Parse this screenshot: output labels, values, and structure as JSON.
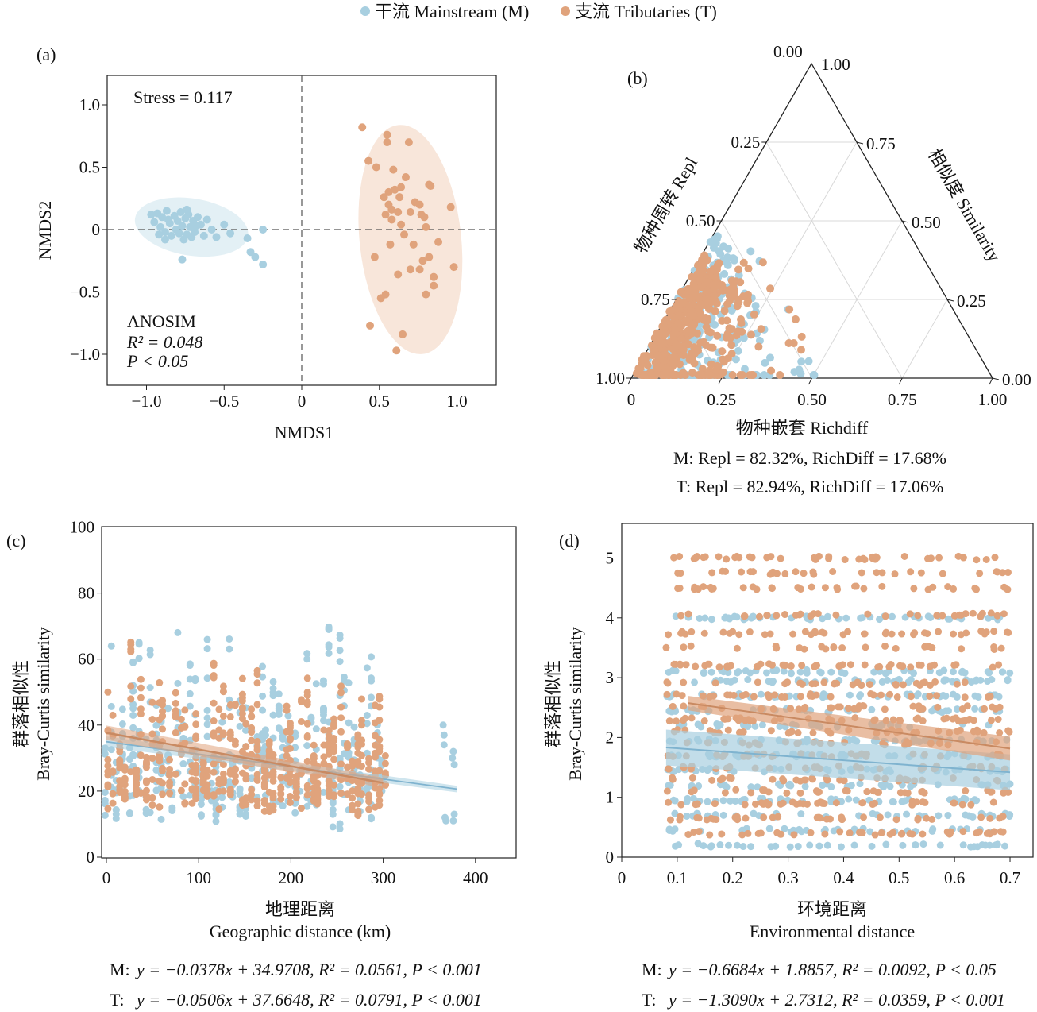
{
  "legend": {
    "mainstream": "干流 Mainstream (M)",
    "tributaries": "支流 Tributaries (T)"
  },
  "colors": {
    "mainstream": "#a8cfe0",
    "tributaries": "#e0a37c",
    "ellipse_m": "#e3f0f5",
    "ellipse_t": "#f8e6da"
  },
  "panel_a": {
    "label": "(a)",
    "xlabel": "NMDS1",
    "ylabel": "NMDS2",
    "stress": "Stress = 0.117",
    "anosim": "ANOSIM",
    "r2": "R² = 0.048",
    "p": "P < 0.05",
    "xticks": [
      "−1.0",
      "−0.5",
      "0",
      "0.5",
      "1.0"
    ],
    "yticks": [
      "1.0",
      "0.5",
      "0",
      "−0.5",
      "−1.0"
    ]
  },
  "panel_b": {
    "label": "(b)",
    "left_axis": "物种周转 Repl",
    "right_axis": "相似度 Similarity",
    "bottom_axis": "物种嵌套 Richdiff",
    "left_ticks": [
      "0.25",
      "0.50",
      "0.75",
      "1.00"
    ],
    "top_left": "0.00",
    "top_right": "1.00",
    "right_ticks": [
      "0.75",
      "0.50",
      "0.25",
      "0.00"
    ],
    "bottom_ticks": [
      "0",
      "0.25",
      "0.50",
      "0.75",
      "1.00"
    ],
    "stat_m": "M: Repl = 82.32%, RichDiff = 17.68%",
    "stat_t": "T: Repl = 82.94%, RichDiff = 17.06%"
  },
  "panel_c": {
    "label": "(c)",
    "ylabel_cn": "群落相似性",
    "ylabel_en": "Bray-Curtis similarity",
    "xlabel_cn": "地理距离",
    "xlabel_en": "Geographic distance (km)",
    "xticks": [
      "0",
      "100",
      "200",
      "300",
      "400"
    ],
    "yticks": [
      "0",
      "20",
      "40",
      "60",
      "80",
      "100"
    ],
    "eq_m_prefix": "M: ",
    "eq_m": "y = −0.0378x + 34.9708, R² = 0.0561, P < 0.001",
    "eq_t_prefix": "T: ",
    "eq_t": "y = −0.0506x + 37.6648, R² = 0.0791, P < 0.001"
  },
  "panel_d": {
    "label": "(d)",
    "ylabel_cn": "群落相似性",
    "ylabel_en": "Bray-Curtis similarity",
    "xlabel_cn": "环境距离",
    "xlabel_en": "Environmental distance",
    "xticks": [
      "0",
      "0.1",
      "0.2",
      "0.3",
      "0.4",
      "0.5",
      "0.6",
      "0.7"
    ],
    "yticks": [
      "0",
      "1",
      "2",
      "3",
      "4",
      "5"
    ],
    "eq_m_prefix": "M: ",
    "eq_m": "y = −0.6684x + 1.8857, R² = 0.0092, P < 0.05",
    "eq_t_prefix": "T: ",
    "eq_t": "y = −1.3090x + 2.7312, R² = 0.0359, P < 0.001"
  },
  "chart_data": [
    {
      "type": "scatter",
      "panel": "a",
      "xlabel": "NMDS1",
      "ylabel": "NMDS2",
      "xlim": [
        -1.25,
        1.25
      ],
      "ylim": [
        -1.25,
        1.25
      ],
      "series": [
        {
          "name": "干流 Mainstream (M)",
          "points": [
            [
              -0.97,
              0.12
            ],
            [
              -0.95,
              0.06
            ],
            [
              -0.93,
              0.13
            ],
            [
              -0.91,
              0.02
            ],
            [
              -0.9,
              0.1
            ],
            [
              -0.88,
              -0.02
            ],
            [
              -0.87,
              0.15
            ],
            [
              -0.85,
              0.05
            ],
            [
              -0.84,
              -0.05
            ],
            [
              -0.82,
              0.11
            ],
            [
              -0.81,
              0.0
            ],
            [
              -0.8,
              0.07
            ],
            [
              -0.79,
              -0.03
            ],
            [
              -0.78,
              0.14
            ],
            [
              -0.77,
              0.03
            ],
            [
              -0.76,
              -0.08
            ],
            [
              -0.75,
              0.09
            ],
            [
              -0.74,
              -0.04
            ],
            [
              -0.73,
              0.12
            ],
            [
              -0.72,
              0.02
            ],
            [
              -0.71,
              -0.06
            ],
            [
              -0.7,
              0.07
            ],
            [
              -0.69,
              -0.02
            ],
            [
              -0.67,
              0.1
            ],
            [
              -0.65,
              0.04
            ],
            [
              -0.63,
              -0.05
            ],
            [
              -0.61,
              0.08
            ],
            [
              -0.58,
              0.0
            ],
            [
              -0.55,
              -0.06
            ],
            [
              -0.5,
              0.04
            ],
            [
              -0.46,
              -0.03
            ],
            [
              -0.77,
              -0.24
            ],
            [
              -0.88,
              -0.08
            ],
            [
              -0.92,
              -0.04
            ],
            [
              -0.35,
              -0.07
            ],
            [
              -0.33,
              -0.18
            ],
            [
              -0.3,
              -0.22
            ],
            [
              -0.25,
              -0.28
            ],
            [
              -0.25,
              0.0
            ],
            [
              -0.86,
              0.08
            ],
            [
              -0.68,
              0.03
            ],
            [
              -0.74,
              0.16
            ]
          ]
        },
        {
          "name": "支流 Tributaries (T)",
          "points": [
            [
              0.39,
              0.82
            ],
            [
              0.55,
              0.76
            ],
            [
              0.55,
              0.7
            ],
            [
              0.69,
              0.7
            ],
            [
              0.43,
              0.55
            ],
            [
              0.48,
              0.5
            ],
            [
              0.59,
              0.48
            ],
            [
              0.67,
              0.42
            ],
            [
              0.82,
              0.36
            ],
            [
              0.83,
              0.35
            ],
            [
              0.56,
              0.3
            ],
            [
              0.6,
              0.32
            ],
            [
              0.64,
              0.34
            ],
            [
              0.53,
              0.26
            ],
            [
              0.63,
              0.26
            ],
            [
              0.56,
              0.2
            ],
            [
              0.73,
              0.22
            ],
            [
              0.76,
              0.2
            ],
            [
              0.58,
              0.16
            ],
            [
              0.62,
              0.14
            ],
            [
              0.54,
              0.12
            ],
            [
              0.7,
              0.14
            ],
            [
              0.77,
              0.12
            ],
            [
              0.79,
              0.1
            ],
            [
              0.96,
              0.18
            ],
            [
              0.58,
              0.08
            ],
            [
              0.64,
              0.04
            ],
            [
              0.8,
              0.02
            ],
            [
              0.66,
              -0.04
            ],
            [
              0.57,
              -0.12
            ],
            [
              0.72,
              -0.12
            ],
            [
              0.88,
              -0.1
            ],
            [
              0.47,
              -0.22
            ],
            [
              0.82,
              -0.22
            ],
            [
              0.78,
              -0.25
            ],
            [
              0.98,
              -0.3
            ],
            [
              0.62,
              -0.36
            ],
            [
              0.7,
              -0.32
            ],
            [
              0.76,
              -0.32
            ],
            [
              0.85,
              -0.38
            ],
            [
              0.85,
              -0.45
            ],
            [
              0.54,
              -0.52
            ],
            [
              0.51,
              -0.55
            ],
            [
              0.8,
              -0.52
            ],
            [
              0.44,
              -0.77
            ],
            [
              0.65,
              -0.84
            ],
            [
              0.61,
              -0.97
            ]
          ]
        }
      ]
    },
    {
      "type": "ternary",
      "panel": "b",
      "axes": [
        "物种周转 Repl",
        "相似度 Similarity",
        "物种嵌套 Richdiff"
      ],
      "note": "Point cloud concentrated near high Repl, low Richdiff corner; coordinates given as [Repl, Similarity, Richdiff]",
      "series": [
        {
          "name": "干流 Mainstream (M)",
          "centroid": [
            0.72,
            0.2,
            0.08
          ]
        },
        {
          "name": "支流 Tributaries (T)",
          "centroid": [
            0.74,
            0.2,
            0.06
          ]
        }
      ]
    },
    {
      "type": "scatter",
      "panel": "c",
      "xlabel": "Geographic distance (km)",
      "ylabel": "Bray-Curtis similarity",
      "xlim": [
        0,
        440
      ],
      "ylim": [
        0,
        100
      ],
      "series": [
        {
          "name": "干流 Mainstream (M)",
          "regression": {
            "slope": -0.0378,
            "intercept": 34.9708,
            "x_range": [
              0,
              380
            ]
          }
        },
        {
          "name": "支流 Tributaries (T)",
          "regression": {
            "slope": -0.0506,
            "intercept": 37.6648,
            "x_range": [
              0,
              300
            ]
          }
        }
      ]
    },
    {
      "type": "scatter",
      "panel": "d",
      "xlabel": "Environmental distance",
      "ylabel": "Bray-Curtis similarity",
      "xlim": [
        0,
        0.73
      ],
      "ylim": [
        0,
        5.5
      ],
      "series": [
        {
          "name": "干流 Mainstream (M)",
          "regression": {
            "slope": -0.6684,
            "intercept": 1.8857,
            "x_range": [
              0.08,
              0.7
            ]
          }
        },
        {
          "name": "支流 Tributaries (T)",
          "regression": {
            "slope": -1.309,
            "intercept": 2.7312,
            "x_range": [
              0.12,
              0.7
            ]
          }
        }
      ]
    }
  ]
}
